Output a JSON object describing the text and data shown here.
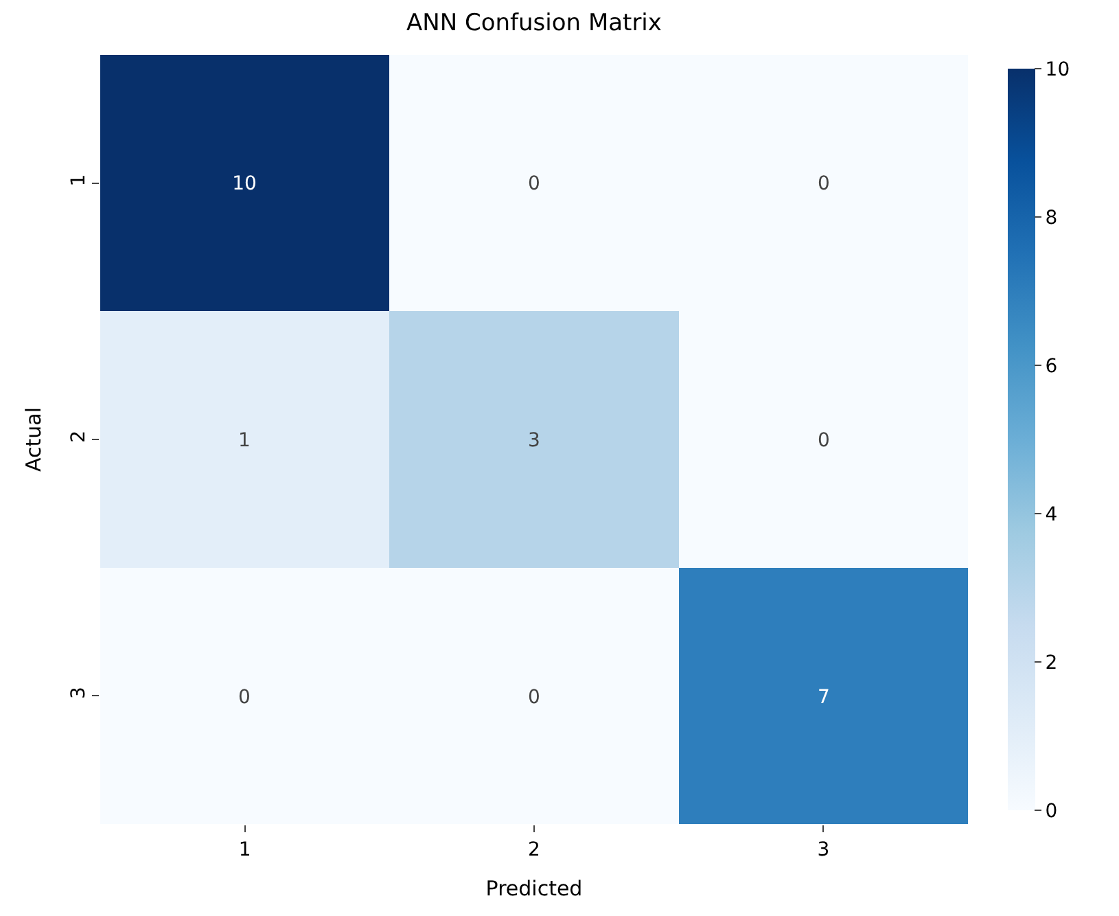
{
  "chart_data": {
    "type": "heatmap",
    "title": "ANN Confusion Matrix",
    "xlabel": "Predicted",
    "ylabel": "Actual",
    "categories": [
      "1",
      "2",
      "3"
    ],
    "y_categories": [
      "1",
      "2",
      "3"
    ],
    "cells": [
      [
        10,
        0,
        0
      ],
      [
        1,
        3,
        0
      ],
      [
        0,
        0,
        7
      ]
    ],
    "clim": [
      0,
      10
    ],
    "cticks": [
      0,
      2,
      4,
      6,
      8,
      10
    ],
    "data_labels": true
  }
}
